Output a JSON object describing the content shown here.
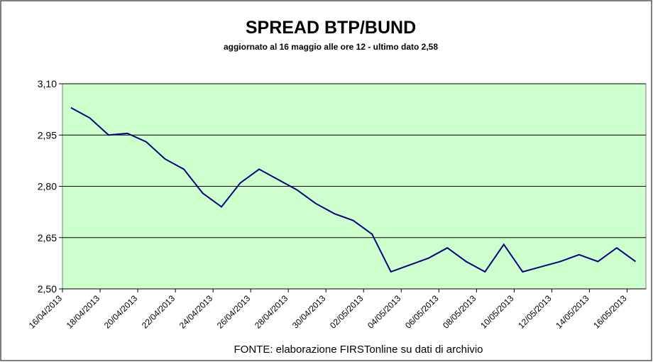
{
  "chart_data": {
    "type": "line",
    "title": "SPREAD  BTP/BUND",
    "subtitle": "aggiornato al 16 maggio alle ore 12 - ultimo dato 2,58",
    "source": "FONTE: elaborazione FIRSTonline su dati di archivio",
    "categories": [
      "16/04/2013",
      null,
      "18/04/2013",
      null,
      "20/04/2013",
      null,
      "22/04/2013",
      null,
      "24/04/2013",
      null,
      "26/04/2013",
      null,
      "28/04/2013",
      null,
      "30/04/2013",
      null,
      "02/05/2013",
      null,
      "04/05/2013",
      null,
      "06/05/2013",
      null,
      "08/05/2013",
      null,
      "10/05/2013",
      null,
      "12/05/2013",
      null,
      "14/05/2013",
      null,
      "16/05/2013"
    ],
    "series": [
      {
        "name": "Spread",
        "color": "#000080",
        "values": [
          3.03,
          3.0,
          2.95,
          2.955,
          2.93,
          2.88,
          2.85,
          2.78,
          2.74,
          2.81,
          2.85,
          2.82,
          2.79,
          2.75,
          2.72,
          2.7,
          2.66,
          2.55,
          2.57,
          2.59,
          2.62,
          2.58,
          2.55,
          2.63,
          2.55,
          2.565,
          2.58,
          2.6,
          2.58,
          2.62,
          2.58
        ]
      }
    ],
    "ylim": [
      2.5,
      3.1
    ],
    "yticks": [
      {
        "value": 2.5,
        "label": "2,50"
      },
      {
        "value": 2.65,
        "label": "2,65"
      },
      {
        "value": 2.8,
        "label": "2,80"
      },
      {
        "value": 2.95,
        "label": "2,95"
      },
      {
        "value": 3.1,
        "label": "3,10"
      }
    ],
    "grid": true,
    "plot_background": "#ccffcc"
  }
}
